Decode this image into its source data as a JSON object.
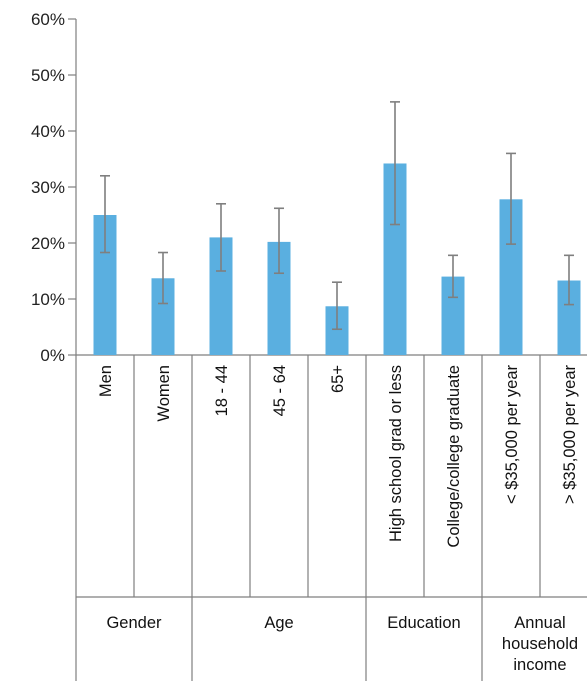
{
  "chart_data": {
    "type": "bar",
    "categories": [
      "Men",
      "Women",
      "18 - 44",
      "45 - 64",
      "65+",
      "High school grad or less",
      "College/college graduate",
      "< $35,000 per year",
      "> $35,000 per year"
    ],
    "values": [
      25,
      13.7,
      21,
      20.2,
      8.7,
      34.2,
      14,
      27.8,
      13.3
    ],
    "error_low": [
      18.3,
      9.2,
      15,
      14.6,
      4.6,
      23.3,
      10.3,
      19.8,
      9
    ],
    "error_high": [
      32,
      18.3,
      27,
      26.2,
      13,
      45.2,
      17.8,
      36,
      17.8
    ],
    "groups": [
      {
        "label": [
          "Gender"
        ],
        "start": 0,
        "end": 1
      },
      {
        "label": [
          "Age"
        ],
        "start": 2,
        "end": 4
      },
      {
        "label": [
          "Education"
        ],
        "start": 5,
        "end": 6
      },
      {
        "label": [
          "Annual",
          "household",
          "income"
        ],
        "start": 7,
        "end": 8
      }
    ],
    "y_ticks": [
      "0%",
      "10%",
      "20%",
      "30%",
      "40%",
      "50%",
      "60%"
    ],
    "ylim": [
      0,
      60
    ],
    "grid": false,
    "colors": {
      "bar": "#5aafe0",
      "error_bar": "#7f7f7f",
      "axis": "#7f7f7f"
    }
  }
}
